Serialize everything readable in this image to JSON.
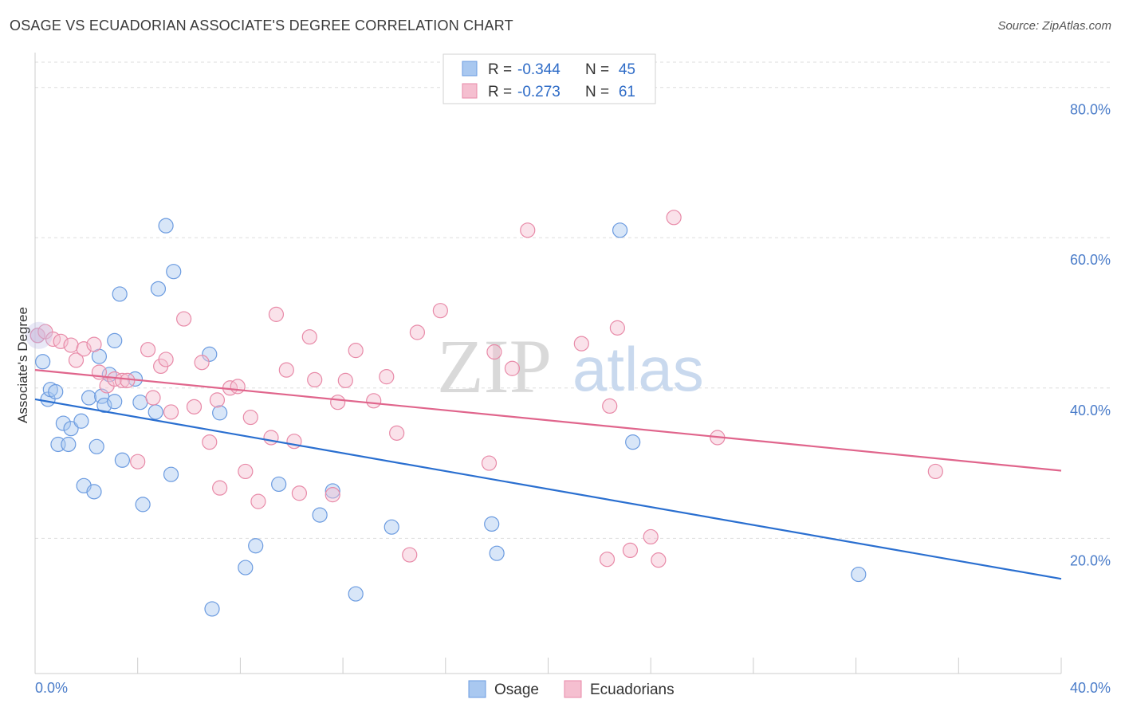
{
  "header": {
    "title": "OSAGE VS ECUADORIAN ASSOCIATE'S DEGREE CORRELATION CHART",
    "source": "Source: ZipAtlas.com"
  },
  "legend": {
    "rows": [
      {
        "r_label": "R =",
        "r_value": "-0.344",
        "n_label": "N =",
        "n_value": "45",
        "color": "#a9c8f0",
        "stroke": "#6b9be0"
      },
      {
        "r_label": "R =",
        "r_value": "-0.273",
        "n_label": "N =",
        "n_value": "61",
        "color": "#f5bfd0",
        "stroke": "#e88aa8"
      }
    ]
  },
  "bottom_legend": [
    {
      "label": "Osage",
      "color": "#a9c8f0",
      "stroke": "#6b9be0"
    },
    {
      "label": "Ecuadorians",
      "color": "#f5bfd0",
      "stroke": "#e88aa8"
    }
  ],
  "watermark": {
    "zip": "ZIP",
    "atlas": "atlas"
  },
  "chart_data": {
    "type": "scatter",
    "title": "OSAGE VS ECUADORIAN ASSOCIATE'S DEGREE CORRELATION CHART",
    "xlabel": "",
    "ylabel": "Associate's Degree",
    "xlim": [
      0,
      40
    ],
    "ylim": [
      2,
      84
    ],
    "x_tick_labels": [
      "0.0%",
      "40.0%"
    ],
    "y_ticks": [
      20,
      40,
      60,
      80
    ],
    "y_tick_labels": [
      "20.0%",
      "40.0%",
      "60.0%",
      "80.0%"
    ],
    "grid": "horizontal dashed",
    "legend_position": "top-center",
    "series": [
      {
        "name": "Osage",
        "color": "#6b9be0",
        "trend": {
          "x": [
            0,
            40
          ],
          "y": [
            38.5,
            14.6
          ],
          "color": "#2a6fd0"
        },
        "points": [
          [
            0.1,
            47.0
          ],
          [
            0.3,
            43.5
          ],
          [
            0.5,
            38.5
          ],
          [
            0.6,
            39.8
          ],
          [
            0.8,
            39.5
          ],
          [
            0.9,
            32.5
          ],
          [
            1.1,
            35.3
          ],
          [
            1.3,
            32.5
          ],
          [
            1.4,
            34.6
          ],
          [
            1.8,
            35.6
          ],
          [
            1.9,
            27.0
          ],
          [
            2.1,
            38.7
          ],
          [
            2.3,
            26.2
          ],
          [
            2.4,
            32.2
          ],
          [
            2.5,
            44.2
          ],
          [
            2.6,
            38.9
          ],
          [
            2.7,
            37.7
          ],
          [
            2.9,
            41.8
          ],
          [
            3.1,
            38.2
          ],
          [
            3.1,
            46.3
          ],
          [
            3.4,
            30.4
          ],
          [
            3.3,
            52.5
          ],
          [
            3.9,
            41.2
          ],
          [
            4.1,
            38.1
          ],
          [
            4.2,
            24.5
          ],
          [
            4.7,
            36.8
          ],
          [
            4.8,
            53.2
          ],
          [
            5.1,
            61.6
          ],
          [
            5.3,
            28.5
          ],
          [
            5.4,
            55.5
          ],
          [
            6.8,
            44.5
          ],
          [
            7.2,
            36.7
          ],
          [
            6.9,
            10.6
          ],
          [
            8.2,
            16.1
          ],
          [
            8.6,
            19.0
          ],
          [
            9.5,
            27.2
          ],
          [
            11.1,
            23.1
          ],
          [
            11.6,
            26.3
          ],
          [
            12.5,
            12.6
          ],
          [
            13.9,
            21.5
          ],
          [
            17.8,
            21.9
          ],
          [
            18.0,
            18.0
          ],
          [
            22.8,
            61.0
          ],
          [
            23.3,
            32.8
          ],
          [
            32.1,
            15.2
          ]
        ]
      },
      {
        "name": "Ecuadorians",
        "color": "#e88aa8",
        "trend": {
          "x": [
            0,
            40
          ],
          "y": [
            42.4,
            29.0
          ],
          "color": "#e0658c"
        },
        "points": [
          [
            0.1,
            47.0
          ],
          [
            0.4,
            47.5
          ],
          [
            0.7,
            46.5
          ],
          [
            1.0,
            46.2
          ],
          [
            1.4,
            45.7
          ],
          [
            1.6,
            43.7
          ],
          [
            1.9,
            45.2
          ],
          [
            2.3,
            45.8
          ],
          [
            2.5,
            42.1
          ],
          [
            2.8,
            40.3
          ],
          [
            3.1,
            41.2
          ],
          [
            3.4,
            41.0
          ],
          [
            3.6,
            41.0
          ],
          [
            4.0,
            30.2
          ],
          [
            4.4,
            45.1
          ],
          [
            4.6,
            38.7
          ],
          [
            4.9,
            42.9
          ],
          [
            5.1,
            43.8
          ],
          [
            5.3,
            36.8
          ],
          [
            5.8,
            49.2
          ],
          [
            6.2,
            37.5
          ],
          [
            6.5,
            43.4
          ],
          [
            6.8,
            32.8
          ],
          [
            7.1,
            38.4
          ],
          [
            7.2,
            26.7
          ],
          [
            7.6,
            40.0
          ],
          [
            7.9,
            40.2
          ],
          [
            8.2,
            28.9
          ],
          [
            8.4,
            36.1
          ],
          [
            8.7,
            24.9
          ],
          [
            9.2,
            33.4
          ],
          [
            9.4,
            49.8
          ],
          [
            9.8,
            42.4
          ],
          [
            10.1,
            32.9
          ],
          [
            10.3,
            26.0
          ],
          [
            10.7,
            46.8
          ],
          [
            10.9,
            41.1
          ],
          [
            11.6,
            25.8
          ],
          [
            11.8,
            38.1
          ],
          [
            12.1,
            41.0
          ],
          [
            12.5,
            45.0
          ],
          [
            13.2,
            38.3
          ],
          [
            13.7,
            41.5
          ],
          [
            14.1,
            34.0
          ],
          [
            14.6,
            17.8
          ],
          [
            14.9,
            47.4
          ],
          [
            15.8,
            50.3
          ],
          [
            17.7,
            30.0
          ],
          [
            17.9,
            44.8
          ],
          [
            18.6,
            42.6
          ],
          [
            19.2,
            61.0
          ],
          [
            21.3,
            45.9
          ],
          [
            22.3,
            17.2
          ],
          [
            22.4,
            37.6
          ],
          [
            22.7,
            48.0
          ],
          [
            23.2,
            18.4
          ],
          [
            24.0,
            20.2
          ],
          [
            24.3,
            17.1
          ],
          [
            24.9,
            62.7
          ],
          [
            26.6,
            33.4
          ],
          [
            35.1,
            28.9
          ]
        ]
      }
    ]
  }
}
